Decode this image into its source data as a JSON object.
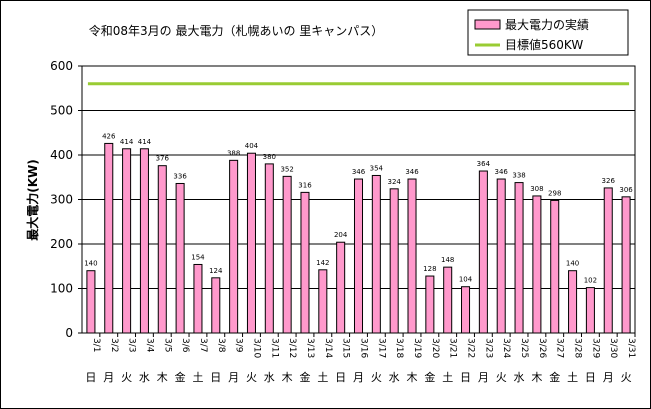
{
  "chart_data": {
    "type": "bar",
    "title": "令和08年3月の 最大電力（札幌あいの 里キャンパス）",
    "xlabel": "",
    "ylabel": "最大電力(KW)",
    "ylim": [
      0,
      600
    ],
    "yticks": [
      0,
      100,
      200,
      300,
      400,
      500,
      600
    ],
    "grid": true,
    "legend_position": "top-right",
    "bar_color": "#ff99cc",
    "target_color": "#99cc33",
    "categories": [
      "3/1",
      "3/2",
      "3/3",
      "3/4",
      "3/5",
      "3/6",
      "3/7",
      "3/8",
      "3/9",
      "3/10",
      "3/11",
      "3/12",
      "3/13",
      "3/14",
      "3/15",
      "3/16",
      "3/17",
      "3/18",
      "3/19",
      "3/20",
      "3/21",
      "3/22",
      "3/23",
      "3/24",
      "3/25",
      "3/26",
      "3/27",
      "3/28",
      "3/29",
      "3/30",
      "3/31"
    ],
    "weekdays": [
      "日",
      "月",
      "火",
      "水",
      "木",
      "金",
      "土",
      "日",
      "月",
      "火",
      "水",
      "木",
      "金",
      "土",
      "日",
      "月",
      "火",
      "水",
      "木",
      "金",
      "土",
      "日",
      "月",
      "火",
      "水",
      "木",
      "金",
      "土",
      "日",
      "月",
      "火"
    ],
    "series": [
      {
        "name": "最大電力の実績",
        "values": [
          140,
          426,
          414,
          414,
          376,
          336,
          154,
          124,
          388,
          404,
          380,
          352,
          316,
          142,
          204,
          346,
          354,
          324,
          346,
          128,
          148,
          104,
          364,
          346,
          338,
          308,
          298,
          140,
          102,
          326,
          306
        ]
      }
    ],
    "target": {
      "name": "目標値560KW",
      "value": 560
    }
  }
}
